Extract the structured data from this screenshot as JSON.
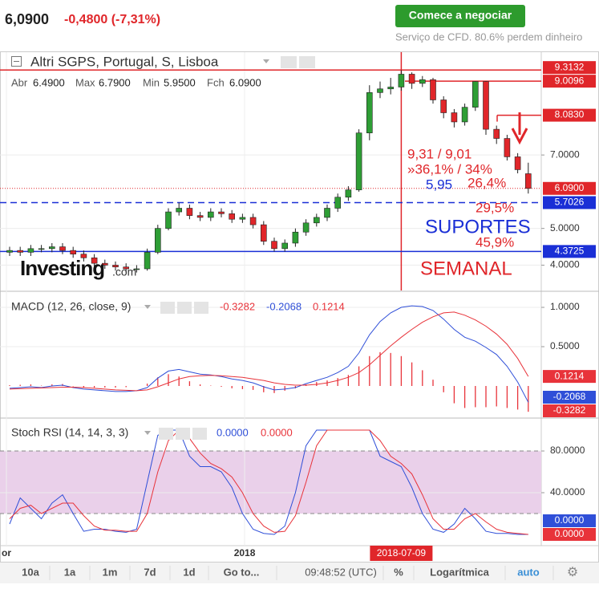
{
  "header": {
    "price": "6,0900",
    "change": "-0,4800 (-7,31%)",
    "button": "Comece a negociar",
    "disclaimer": "Serviço de CFD. 80.6% perdem dinheiro"
  },
  "toolbar": [
    "10a",
    "1a",
    "1m",
    "7d",
    "1d",
    "Go to...",
    "09:48:52 (UTC)",
    "%",
    "Logarítmica",
    "auto"
  ],
  "chart_data": [
    {
      "type": "candlestick",
      "title": "Altri SGPS, Portugal, S, Lisboa",
      "legend_values": [
        {
          "label": "Abr",
          "value": "6.4900"
        },
        {
          "label": "Max",
          "value": "6.7900"
        },
        {
          "label": "Min",
          "value": "5.9500"
        },
        {
          "label": "Fch",
          "value": "6.0900"
        }
      ],
      "watermark": [
        "Investing",
        ".com"
      ],
      "open": [
        4.35,
        4.4,
        4.35,
        4.45,
        4.45,
        4.5,
        4.4,
        4.3,
        4.2,
        4.05,
        4.0,
        3.95,
        3.9,
        3.9,
        4.35,
        5.0,
        5.45,
        5.55,
        5.35,
        5.3,
        5.45,
        5.4,
        5.25,
        5.3,
        5.1,
        4.65,
        4.45,
        4.6,
        4.9,
        5.15,
        5.3,
        5.55,
        5.85,
        6.05,
        7.6,
        8.7,
        8.8,
        8.85,
        9.2,
        8.95,
        9.05,
        8.5,
        8.15,
        7.9,
        8.3,
        9.0,
        7.7,
        7.45,
        6.95,
        6.49
      ],
      "high": [
        4.5,
        4.5,
        4.55,
        4.55,
        4.6,
        4.6,
        4.5,
        4.4,
        4.3,
        4.15,
        4.1,
        4.05,
        4.0,
        4.45,
        5.1,
        5.55,
        5.7,
        5.65,
        5.45,
        5.55,
        5.55,
        5.5,
        5.4,
        5.4,
        5.2,
        4.75,
        4.7,
        5.0,
        5.25,
        5.4,
        5.65,
        5.95,
        6.15,
        7.7,
        8.9,
        9.0,
        9.1,
        9.31,
        9.25,
        9.15,
        9.1,
        8.6,
        8.25,
        8.4,
        9.01,
        9.01,
        7.8,
        7.55,
        7.05,
        6.79
      ],
      "low": [
        4.25,
        4.25,
        4.25,
        4.35,
        4.35,
        4.3,
        4.2,
        4.1,
        3.95,
        3.9,
        3.85,
        3.8,
        3.8,
        3.85,
        4.3,
        4.95,
        5.35,
        5.25,
        5.2,
        5.2,
        5.3,
        5.15,
        5.15,
        5.0,
        4.55,
        4.37,
        4.37,
        4.5,
        4.8,
        5.05,
        5.2,
        5.45,
        5.75,
        6.0,
        7.4,
        8.55,
        8.65,
        8.75,
        8.8,
        8.85,
        8.4,
        8.0,
        7.75,
        7.8,
        8.2,
        7.55,
        7.3,
        6.85,
        6.5,
        5.95
      ],
      "close": [
        4.4,
        4.35,
        4.45,
        4.45,
        4.5,
        4.4,
        4.3,
        4.2,
        4.05,
        4.0,
        3.95,
        3.9,
        3.9,
        4.35,
        5.0,
        5.45,
        5.55,
        5.35,
        5.3,
        5.45,
        5.4,
        5.25,
        5.3,
        5.1,
        4.65,
        4.45,
        4.6,
        4.9,
        5.15,
        5.3,
        5.55,
        5.85,
        6.05,
        7.6,
        8.7,
        8.8,
        8.85,
        9.2,
        8.95,
        9.05,
        8.5,
        8.15,
        7.9,
        8.3,
        9.0,
        7.7,
        7.45,
        6.95,
        6.6,
        6.09
      ],
      "up_color": "#2e9e35",
      "down_color": "#e0262a",
      "ylim": [
        3.31,
        9.8
      ],
      "yticks": [
        {
          "value": 4,
          "label": "4.0000"
        },
        {
          "value": 5,
          "label": "5.0000"
        },
        {
          "value": 7,
          "label": "7.0000"
        }
      ],
      "grid": true,
      "levels": [
        {
          "value": 9.3132,
          "label": "9.3132",
          "color": "#e0262a",
          "style": "solid"
        },
        {
          "value": 9.0096,
          "label": "9.0096",
          "color": "#e0262a",
          "style": "solid"
        },
        {
          "value": 8.083,
          "label": "8.0830",
          "color": "#e0262a",
          "style": "solid"
        },
        {
          "value": 6.09,
          "label": "6.0900",
          "color": "#e0262a",
          "style": "dotted"
        },
        {
          "value": 5.7026,
          "label": "5.7026",
          "color": "#1a2fd6",
          "style": "dashed"
        },
        {
          "value": 4.3725,
          "label": "4.3725",
          "color": "#1a2fd6",
          "style": "solid"
        }
      ],
      "annotations": [
        "9,31 / 9,01",
        "»36,1% / 34%",
        "5,95",
        "26,4%",
        "29,5%",
        "SUPORTES",
        "45,9%",
        "SEMANAL"
      ],
      "cursor": {
        "index": 37,
        "label": "2018-07-09"
      },
      "xticks": [
        {
          "value": -0.3,
          "label": "or"
        },
        {
          "value": 22.2,
          "label": "2018"
        }
      ]
    },
    {
      "type": "macd",
      "title": "MACD (12, 26, close, 9)",
      "ylim": [
        -0.398,
        1.184
      ],
      "yticks": [
        {
          "value": 0.5,
          "label": "0.5000"
        },
        {
          "value": 1,
          "label": "1.0000"
        }
      ],
      "series": [
        {
          "name": "histogram",
          "color": "#e8333a",
          "values": [
            0.01,
            0.015,
            0.02,
            0.005,
            0.02,
            0.025,
            -0.005,
            -0.02,
            -0.02,
            -0.02,
            -0.02,
            -0.015,
            0,
            0.03,
            0.11,
            0.15,
            0.12,
            0.06,
            0.02,
            0.005,
            -0.01,
            -0.03,
            -0.04,
            -0.05,
            -0.08,
            -0.09,
            -0.06,
            -0.03,
            0.02,
            0.05,
            0.07,
            0.1,
            0.14,
            0.25,
            0.38,
            0.43,
            0.42,
            0.38,
            0.3,
            0.2,
            0.08,
            -0.08,
            -0.22,
            -0.28,
            -0.27,
            -0.27,
            -0.26,
            -0.28,
            -0.3,
            -0.3282
          ]
        },
        {
          "name": "macd",
          "color": "#2f4fd8",
          "values": [
            -0.03,
            -0.02,
            -0.01,
            -0.02,
            0,
            0.01,
            -0.02,
            -0.04,
            -0.05,
            -0.06,
            -0.07,
            -0.07,
            -0.06,
            -0.02,
            0.1,
            0.19,
            0.21,
            0.18,
            0.15,
            0.14,
            0.12,
            0.09,
            0.07,
            0.04,
            -0.01,
            -0.05,
            -0.04,
            -0.02,
            0.03,
            0.07,
            0.11,
            0.17,
            0.25,
            0.42,
            0.65,
            0.82,
            0.93,
            1,
            1.02,
            1.01,
            0.96,
            0.85,
            0.72,
            0.62,
            0.57,
            0.49,
            0.4,
            0.25,
            0.05,
            -0.2068
          ]
        },
        {
          "name": "signal",
          "color": "#e8333a",
          "values": [
            -0.04,
            -0.035,
            -0.03,
            -0.025,
            -0.02,
            -0.015,
            -0.015,
            -0.02,
            -0.03,
            -0.04,
            -0.05,
            -0.055,
            -0.06,
            -0.05,
            -0.01,
            0.04,
            0.09,
            0.12,
            0.13,
            0.135,
            0.13,
            0.12,
            0.11,
            0.09,
            0.07,
            0.04,
            0.02,
            0.01,
            0.01,
            0.02,
            0.04,
            0.07,
            0.11,
            0.17,
            0.27,
            0.39,
            0.51,
            0.62,
            0.72,
            0.81,
            0.88,
            0.93,
            0.94,
            0.9,
            0.84,
            0.76,
            0.66,
            0.53,
            0.35,
            0.1214
          ]
        }
      ]
    },
    {
      "type": "stoch",
      "title": "Stoch RSI (14, 14, 3, 3)",
      "ylim": [
        -10.8,
        110.8
      ],
      "yticks": [
        {
          "value": 40,
          "label": "40.0000"
        },
        {
          "value": 80,
          "label": "80.0000"
        }
      ],
      "band": [
        20,
        80
      ],
      "band_color": "#ead0ea",
      "legend_values": [
        "0.0000",
        "0.0000"
      ],
      "series": [
        {
          "name": "K",
          "color": "#2f4fd8",
          "values": [
            10,
            35,
            25,
            15,
            30,
            38,
            20,
            3,
            5,
            5,
            3,
            2,
            5,
            50,
            95,
            100,
            100,
            75,
            65,
            65,
            60,
            45,
            20,
            5,
            1,
            0,
            8,
            40,
            85,
            100,
            100,
            100,
            100,
            100,
            100,
            75,
            70,
            65,
            45,
            20,
            5,
            2,
            10,
            25,
            15,
            3,
            1,
            1,
            0,
            0
          ]
        },
        {
          "name": "D",
          "color": "#e8333a",
          "values": [
            15,
            25,
            28,
            20,
            25,
            30,
            30,
            18,
            8,
            4,
            4,
            3,
            3,
            20,
            60,
            90,
            100,
            92,
            78,
            68,
            63,
            55,
            40,
            20,
            8,
            2,
            3,
            18,
            50,
            85,
            100,
            100,
            100,
            100,
            100,
            90,
            75,
            68,
            58,
            38,
            15,
            5,
            5,
            15,
            20,
            12,
            5,
            2,
            1,
            0
          ]
        }
      ]
    }
  ]
}
